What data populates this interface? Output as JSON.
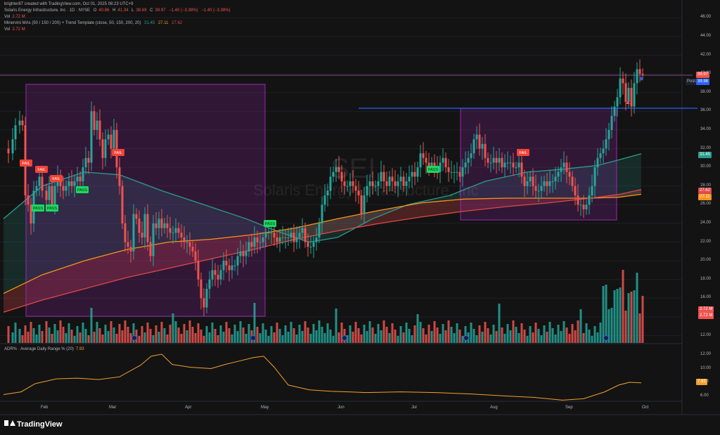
{
  "header": {
    "created_by": "brighter87 created with TradingView.com, Oct 01, 2025 08:23 UTC+9",
    "symbol_line": "Solaris Energy Infrastructure, Inc · 1D · NYSE",
    "ohlc": {
      "o_label": "O",
      "o": "40.86",
      "h_label": "H",
      "h": "41.34",
      "l_label": "L",
      "l": "38.69",
      "c_label": "C",
      "c": "39.97",
      "change": "−1.40 (−3.38%)",
      "change2": "−1.40 (−3.38%)"
    },
    "vol_label": "Vol",
    "vol_value": "2.72 M",
    "indicator_label": "Minervini MAs (50 / 150 / 200) + Trend Template (close, 50, 150, 200, 20)",
    "indicator_values": [
      "31.45",
      "27.11",
      "27.62"
    ],
    "vol2_label": "Vol",
    "vol2_value": "2.72 M"
  },
  "watermark": {
    "ticker": "SEI",
    "name": "Solaris Energy Infrastructure, Inc"
  },
  "price_axis": [
    "46.00",
    "44.00",
    "42.00",
    "40.00",
    "38.00",
    "36.00",
    "34.00",
    "32.00",
    "30.00",
    "28.00",
    "26.00",
    "24.00",
    "22.00",
    "20.00",
    "18.00",
    "16.00",
    "14.00",
    "12.00"
  ],
  "price_tags": {
    "last": "39.97",
    "post_label": "Post",
    "post": "39.98",
    "ma50": "31.45",
    "ma200": "27.62",
    "ma150": "27.11",
    "vol1": "2.72 M",
    "vol2": "2.72 M"
  },
  "adr": {
    "label": "ADR% · Average Daily Range % (20)",
    "value": "7.93",
    "axis": [
      "12.00",
      "10.00",
      "8.00",
      "6.00"
    ]
  },
  "time_axis": [
    "Feb",
    "Mar",
    "Apr",
    "May",
    "Jun",
    "Jul",
    "Aug",
    "Sep",
    "Oct"
  ],
  "signals": [
    {
      "text": "FAIL",
      "type": "fail"
    },
    {
      "text": "FAIL",
      "type": "fail"
    },
    {
      "text": "FAIL",
      "type": "fail"
    },
    {
      "text": "PASS",
      "type": "pass"
    },
    {
      "text": "PASS",
      "type": "pass"
    },
    {
      "text": "PASS",
      "type": "pass"
    },
    {
      "text": "FAIL",
      "type": "fail"
    },
    {
      "text": "PASS",
      "type": "pass"
    },
    {
      "text": "PASS",
      "type": "pass"
    },
    {
      "text": "FAIL",
      "type": "fail"
    }
  ],
  "logo": "TradingView",
  "colors": {
    "up": "#26a69a",
    "down": "#ef5350",
    "ma50": "#2a9d8f",
    "ma150": "#f7931a",
    "ma200": "#e04848",
    "box": "#9c27b0",
    "resistance": "#2962ff",
    "adr": "#f0a030",
    "bg": "#131313"
  }
}
